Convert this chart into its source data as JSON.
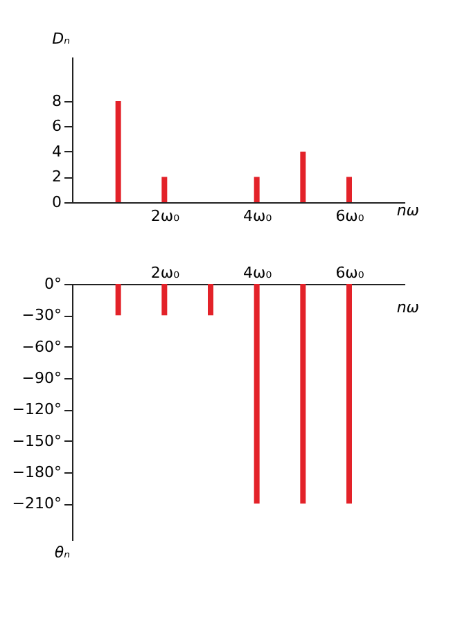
{
  "chart_data": [
    {
      "type": "bar",
      "ylabel": "Dₙ",
      "xlabel": "nω",
      "x": [
        1,
        2,
        4,
        5,
        6
      ],
      "values": [
        8,
        2,
        2,
        4,
        2
      ],
      "color": "#e32229",
      "xlim": [
        0,
        7.2
      ],
      "xticks": [
        {
          "value": 2,
          "label": "2ω₀"
        },
        {
          "value": 4,
          "label": "4ω₀"
        },
        {
          "value": 6,
          "label": "6ω₀"
        }
      ],
      "ylim": [
        0,
        11.5
      ],
      "yticks": [
        0,
        2,
        4,
        6,
        8
      ],
      "grid": false
    },
    {
      "type": "bar",
      "ylabel": "θₙ",
      "xlabel": "nω",
      "x": [
        1,
        2,
        3,
        4,
        5,
        6
      ],
      "values": [
        -30,
        -30,
        -30,
        -210,
        -210,
        -210
      ],
      "color": "#e32229",
      "xlim": [
        0,
        7.2
      ],
      "xticks": [
        {
          "value": 2,
          "label": "2ω₀"
        },
        {
          "value": 4,
          "label": "4ω₀"
        },
        {
          "value": 6,
          "label": "6ω₀"
        }
      ],
      "ylim": [
        -245,
        0
      ],
      "yticks": [
        {
          "value": 0,
          "label": "0°"
        },
        {
          "value": -30,
          "label": "−30°"
        },
        {
          "value": -60,
          "label": "−60°"
        },
        {
          "value": -90,
          "label": "−90°"
        },
        {
          "value": -120,
          "label": "−120°"
        },
        {
          "value": -150,
          "label": "−150°"
        },
        {
          "value": -180,
          "label": "−180°"
        },
        {
          "value": -210,
          "label": "−210°"
        }
      ],
      "grid": false
    }
  ]
}
